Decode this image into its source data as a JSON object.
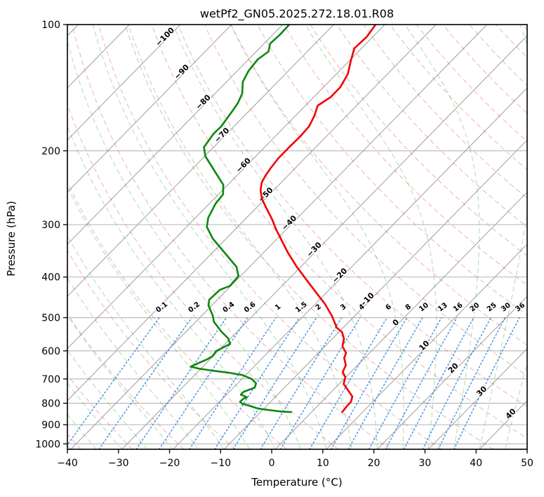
{
  "title": "wetPf2_GN05.2025.272.18.01.R08",
  "axes": {
    "x_label": "Temperature (°C)",
    "y_label": "Pressure (hPa)",
    "x_ticks": [
      -40,
      -30,
      -20,
      -10,
      0,
      10,
      20,
      30,
      40,
      50
    ],
    "y_ticks": [
      100,
      200,
      300,
      400,
      500,
      600,
      700,
      800,
      900,
      1000
    ]
  },
  "colors": {
    "temperature": "#f10000",
    "dewpoint": "#0e870e",
    "isotherm_grid": "#9e9e9e",
    "pressure_grid": "#b5b5b5",
    "dry_adiabat": "#d62728",
    "moist_adiabat": "#2ca02c",
    "mixing_ratio": "#3d8fe0",
    "label_cold": "#1f77b4",
    "label_zero": "#666666",
    "label_warm": "#d62728",
    "mixing_label": "#2e86d6"
  },
  "chart_data": {
    "type": "line",
    "subtype": "skewt-log-p",
    "pressure_axis": {
      "scale": "log",
      "top": 100,
      "bottom_spine": 1030,
      "ticks": [
        100,
        200,
        300,
        400,
        500,
        600,
        700,
        800,
        900,
        1000
      ]
    },
    "temperature_axis": {
      "min": -40,
      "max": 50,
      "ticks_step": 10
    },
    "grid": {
      "isotherms_degC": {
        "from": -120,
        "to": 50,
        "step": 10
      },
      "dry_adiabats_theta_degC": {
        "from": -40,
        "to": 210,
        "step": 10
      },
      "moist_adiabats_start_degC": {
        "from": -40,
        "to": 50,
        "step": 5
      },
      "mixing_ratio_g_kg": [
        0.1,
        0.2,
        0.4,
        0.6,
        1,
        1.5,
        2,
        3,
        4,
        6,
        8,
        10,
        13,
        16,
        20,
        25,
        30,
        36
      ]
    },
    "isotherm_labels": [
      {
        "value": -100,
        "y": 55
      },
      {
        "value": -90,
        "y": 105
      },
      {
        "value": -80,
        "y": 148
      },
      {
        "value": -70,
        "y": 195
      },
      {
        "value": -60,
        "y": 238
      },
      {
        "value": -50,
        "y": 280
      },
      {
        "value": -40,
        "y": 320
      },
      {
        "value": -30,
        "y": 358
      },
      {
        "value": -20,
        "y": 395
      },
      {
        "value": -10,
        "y": 430
      },
      {
        "value": 0,
        "y": 462
      },
      {
        "value": 10,
        "y": 495
      },
      {
        "value": 20,
        "y": 527
      },
      {
        "value": 30,
        "y": 560
      },
      {
        "value": 40,
        "y": 592
      }
    ],
    "series": [
      {
        "name": "temperature",
        "units": [
          "hPa",
          "degC"
        ],
        "points": [
          [
            100,
            -61.8
          ],
          [
            107,
            -61.2
          ],
          [
            114,
            -61.4
          ],
          [
            123,
            -59.5
          ],
          [
            131,
            -57.8
          ],
          [
            141,
            -56.7
          ],
          [
            149,
            -56.7
          ],
          [
            156,
            -57.6
          ],
          [
            165,
            -56.3
          ],
          [
            175,
            -55.3
          ],
          [
            185,
            -55.1
          ],
          [
            196,
            -55.2
          ],
          [
            208,
            -55.2
          ],
          [
            220,
            -54.8
          ],
          [
            229,
            -54.4
          ],
          [
            238,
            -53.8
          ],
          [
            248,
            -52.6
          ],
          [
            260,
            -50.7
          ],
          [
            275,
            -47.8
          ],
          [
            292,
            -44.6
          ],
          [
            308,
            -42.0
          ],
          [
            324,
            -39.3
          ],
          [
            350,
            -35.2
          ],
          [
            378,
            -30.8
          ],
          [
            408,
            -26.1
          ],
          [
            438,
            -21.7
          ],
          [
            464,
            -18.1
          ],
          [
            495,
            -14.5
          ],
          [
            529,
            -11.2
          ],
          [
            541,
            -9.4
          ],
          [
            562,
            -7.7
          ],
          [
            585,
            -6.6
          ],
          [
            607,
            -4.6
          ],
          [
            624,
            -4.0
          ],
          [
            649,
            -2.3
          ],
          [
            674,
            -1.6
          ],
          [
            693,
            -0.1
          ],
          [
            720,
            0.9
          ],
          [
            748,
            3.2
          ],
          [
            771,
            5.0
          ],
          [
            793,
            5.7
          ],
          [
            817,
            5.8
          ],
          [
            840,
            6.0
          ]
        ]
      },
      {
        "name": "dewpoint",
        "units": [
          "hPa",
          "degC"
        ],
        "points": [
          [
            100,
            -78.7
          ],
          [
            106,
            -78.6
          ],
          [
            111,
            -78.8
          ],
          [
            116,
            -77.6
          ],
          [
            121,
            -78.2
          ],
          [
            129,
            -77.8
          ],
          [
            137,
            -76.8
          ],
          [
            146,
            -74.7
          ],
          [
            154,
            -73.7
          ],
          [
            160,
            -73.3
          ],
          [
            175,
            -72.5
          ],
          [
            182,
            -72.6
          ],
          [
            196,
            -71.9
          ],
          [
            206,
            -69.9
          ],
          [
            226,
            -64.6
          ],
          [
            241,
            -60.9
          ],
          [
            254,
            -59.1
          ],
          [
            267,
            -58.8
          ],
          [
            289,
            -57.5
          ],
          [
            304,
            -56.0
          ],
          [
            324,
            -52.6
          ],
          [
            350,
            -47.6
          ],
          [
            378,
            -42.6
          ],
          [
            398,
            -40.4
          ],
          [
            420,
            -40.2
          ],
          [
            429,
            -41.4
          ],
          [
            453,
            -41.6
          ],
          [
            467,
            -40.7
          ],
          [
            495,
            -37.8
          ],
          [
            511,
            -36.5
          ],
          [
            539,
            -33.2
          ],
          [
            560,
            -30.5
          ],
          [
            578,
            -29.0
          ],
          [
            589,
            -29.7
          ],
          [
            601,
            -30.4
          ],
          [
            617,
            -30.1
          ],
          [
            629,
            -30.6
          ],
          [
            641,
            -31.5
          ],
          [
            654,
            -32.4
          ],
          [
            661,
            -30.6
          ],
          [
            669,
            -27.3
          ],
          [
            677,
            -23.6
          ],
          [
            685,
            -20.7
          ],
          [
            700,
            -18.1
          ],
          [
            717,
            -16.4
          ],
          [
            734,
            -15.8
          ],
          [
            745,
            -16.7
          ],
          [
            751,
            -17.2
          ],
          [
            763,
            -17.2
          ],
          [
            774,
            -15.5
          ],
          [
            780,
            -15.9
          ],
          [
            793,
            -16.0
          ],
          [
            802,
            -15.2
          ],
          [
            811,
            -13.4
          ],
          [
            824,
            -11.1
          ],
          [
            830,
            -8.9
          ],
          [
            837,
            -6.2
          ],
          [
            840,
            -4.0
          ]
        ]
      }
    ]
  }
}
